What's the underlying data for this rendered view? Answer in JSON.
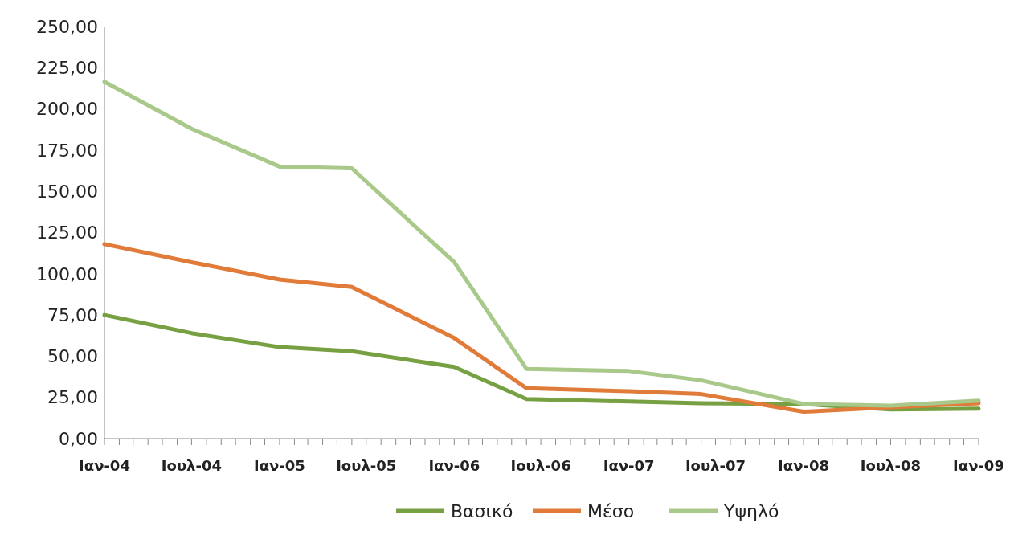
{
  "chart_data": {
    "type": "line",
    "x": [
      "2004-01",
      "2004-07",
      "2005-01",
      "2005-06",
      "2006-01",
      "2006-06",
      "2007-01",
      "2007-06",
      "2008-01",
      "2008-07",
      "2009-01"
    ],
    "series": [
      {
        "name": "Βασικό",
        "color": "#77a043",
        "values": [
          75,
          64,
          55.5,
          53,
          43.5,
          24,
          22.5,
          21.5,
          21,
          17.7,
          18.2
        ]
      },
      {
        "name": "Μέσο",
        "color": "#e07b39",
        "values": [
          118,
          107,
          96.5,
          92,
          61,
          30.6,
          28.7,
          27,
          16.3,
          19,
          21.5
        ]
      },
      {
        "name": "Υψηλό",
        "color": "#a9c98a",
        "values": [
          216.5,
          188,
          165,
          164,
          107,
          42.3,
          41,
          35.4,
          21,
          20,
          23
        ]
      }
    ],
    "xlim": [
      "2004-01",
      "2009-01"
    ],
    "xticks": [
      {
        "value": "2004-01",
        "label": "Ιαν-04"
      },
      {
        "value": "2004-02",
        "label": null
      },
      {
        "value": "2004-03",
        "label": null
      },
      {
        "value": "2004-04",
        "label": null
      },
      {
        "value": "2004-05",
        "label": null
      },
      {
        "value": "2004-06",
        "label": null
      },
      {
        "value": "2004-07",
        "label": "Ιουλ-04"
      },
      {
        "value": "2004-08",
        "label": null
      },
      {
        "value": "2004-09",
        "label": null
      },
      {
        "value": "2004-10",
        "label": null
      },
      {
        "value": "2004-11",
        "label": null
      },
      {
        "value": "2004-12",
        "label": null
      },
      {
        "value": "2005-01",
        "label": "Ιαν-05"
      },
      {
        "value": "2005-02",
        "label": null
      },
      {
        "value": "2005-03",
        "label": null
      },
      {
        "value": "2005-04",
        "label": null
      },
      {
        "value": "2005-05",
        "label": null
      },
      {
        "value": "2005-06",
        "label": null
      },
      {
        "value": "2005-07",
        "label": "Ιουλ-05"
      },
      {
        "value": "2005-08",
        "label": null
      },
      {
        "value": "2005-09",
        "label": null
      },
      {
        "value": "2005-10",
        "label": null
      },
      {
        "value": "2005-11",
        "label": null
      },
      {
        "value": "2005-12",
        "label": null
      },
      {
        "value": "2006-01",
        "label": "Ιαν-06"
      },
      {
        "value": "2006-02",
        "label": null
      },
      {
        "value": "2006-03",
        "label": null
      },
      {
        "value": "2006-04",
        "label": null
      },
      {
        "value": "2006-05",
        "label": null
      },
      {
        "value": "2006-06",
        "label": null
      },
      {
        "value": "2006-07",
        "label": "Ιουλ-06"
      },
      {
        "value": "2006-08",
        "label": null
      },
      {
        "value": "2006-09",
        "label": null
      },
      {
        "value": "2006-10",
        "label": null
      },
      {
        "value": "2006-11",
        "label": null
      },
      {
        "value": "2006-12",
        "label": null
      },
      {
        "value": "2007-01",
        "label": "Ιαν-07"
      },
      {
        "value": "2007-02",
        "label": null
      },
      {
        "value": "2007-03",
        "label": null
      },
      {
        "value": "2007-04",
        "label": null
      },
      {
        "value": "2007-05",
        "label": null
      },
      {
        "value": "2007-06",
        "label": null
      },
      {
        "value": "2007-07",
        "label": "Ιουλ-07"
      },
      {
        "value": "2007-08",
        "label": null
      },
      {
        "value": "2007-09",
        "label": null
      },
      {
        "value": "2007-10",
        "label": null
      },
      {
        "value": "2007-11",
        "label": null
      },
      {
        "value": "2007-12",
        "label": null
      },
      {
        "value": "2008-01",
        "label": "Ιαν-08"
      },
      {
        "value": "2008-02",
        "label": null
      },
      {
        "value": "2008-03",
        "label": null
      },
      {
        "value": "2008-04",
        "label": null
      },
      {
        "value": "2008-05",
        "label": null
      },
      {
        "value": "2008-06",
        "label": null
      },
      {
        "value": "2008-07",
        "label": "Ιουλ-08"
      },
      {
        "value": "2008-08",
        "label": null
      },
      {
        "value": "2008-09",
        "label": null
      },
      {
        "value": "2008-10",
        "label": null
      },
      {
        "value": "2008-11",
        "label": null
      },
      {
        "value": "2008-12",
        "label": null
      },
      {
        "value": "2009-01",
        "label": "Ιαν-09"
      }
    ],
    "ylim": [
      0,
      250
    ],
    "yticks": [
      {
        "value": 0,
        "label": "0,00"
      },
      {
        "value": 25,
        "label": "25,00"
      },
      {
        "value": 50,
        "label": "50,00"
      },
      {
        "value": 75,
        "label": "75,00"
      },
      {
        "value": 100,
        "label": "100,00"
      },
      {
        "value": 125,
        "label": "125,00"
      },
      {
        "value": 150,
        "label": "150,00"
      },
      {
        "value": 175,
        "label": "175,00"
      },
      {
        "value": 200,
        "label": "200,00"
      },
      {
        "value": 225,
        "label": "225,00"
      },
      {
        "value": 250,
        "label": "250,00"
      }
    ],
    "grid": false,
    "legend": "bottom",
    "marker": "none",
    "line_style": "solid"
  }
}
